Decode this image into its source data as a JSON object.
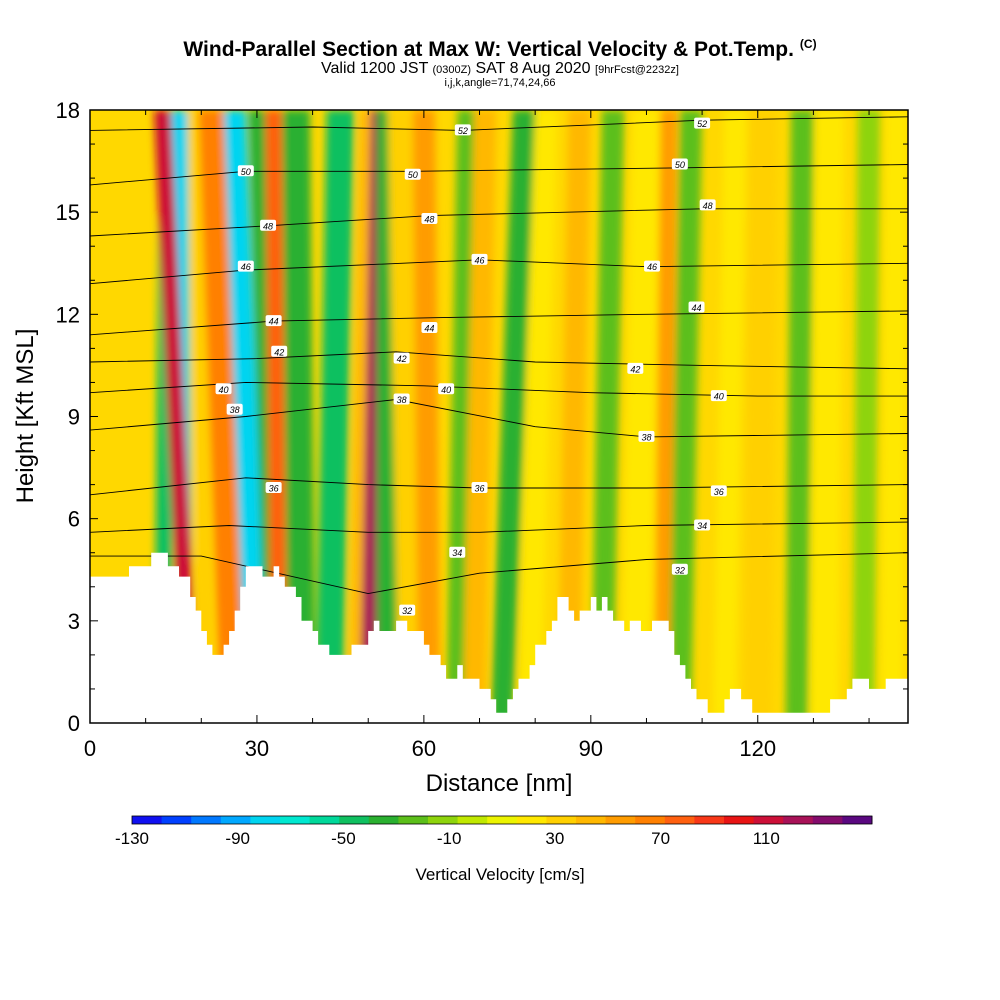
{
  "header": {
    "title": "Wind-Parallel Section at Max W: Vertical Velocity & Pot.Temp.",
    "title_mark": "(C)",
    "subtitle_main": "Valid 1200 JST",
    "subtitle_utc": "(0300Z)",
    "subtitle_date": "SAT 8 Aug 2020",
    "subtitle_fcst": "[9hrFcst@2232z]",
    "subtitle_2": "i,j,k,angle=71,74,24,66"
  },
  "chart_data": {
    "type": "heatmap",
    "xlabel": "Distance [nm]",
    "ylabel": "Height [Kft MSL]",
    "xlim": [
      0,
      147
    ],
    "ylim": [
      0,
      18
    ],
    "x_ticks": [
      "0",
      "30",
      "60",
      "90",
      "120"
    ],
    "y_ticks": [
      "0",
      "3",
      "6",
      "9",
      "12",
      "15",
      "18"
    ],
    "x_tick_values": [
      0,
      30,
      60,
      90,
      120
    ],
    "y_tick_values": [
      0,
      3,
      6,
      9,
      12,
      15,
      18
    ],
    "colorbar": {
      "label": "Vertical Velocity [cm/s]",
      "tick_labels": [
        "-130",
        "-90",
        "-50",
        "-10",
        "30",
        "70",
        "110"
      ],
      "tick_values": [
        -130,
        -90,
        -50,
        -10,
        30,
        70,
        110
      ],
      "range": [
        -130,
        150
      ],
      "colors": [
        "#1010f0",
        "#0040ff",
        "#0078ff",
        "#00a8ff",
        "#00d4f0",
        "#00e8d0",
        "#00d89a",
        "#10c060",
        "#2ab030",
        "#5cbf1a",
        "#8ed40c",
        "#c0e800",
        "#ecf400",
        "#ffe800",
        "#ffd000",
        "#ffb800",
        "#ff9c00",
        "#ff8000",
        "#ff6010",
        "#f83818",
        "#e81414",
        "#cc1038",
        "#a81258",
        "#840c6c",
        "#5a0880"
      ]
    },
    "terrain_kft": [
      [
        0,
        4.3
      ],
      [
        7,
        4.3
      ],
      [
        7,
        4.6
      ],
      [
        11,
        4.6
      ],
      [
        11,
        5.0
      ],
      [
        14,
        5.0
      ],
      [
        14,
        4.6
      ],
      [
        16,
        4.6
      ],
      [
        16,
        4.3
      ],
      [
        18,
        4.3
      ],
      [
        18,
        3.7
      ],
      [
        19,
        3.7
      ],
      [
        19,
        3.3
      ],
      [
        20,
        3.3
      ],
      [
        20,
        2.7
      ],
      [
        21,
        2.7
      ],
      [
        21,
        2.3
      ],
      [
        22,
        2.3
      ],
      [
        22,
        2.0
      ],
      [
        24,
        2.0
      ],
      [
        24,
        2.3
      ],
      [
        25,
        2.3
      ],
      [
        25,
        2.7
      ],
      [
        26,
        2.7
      ],
      [
        26,
        3.3
      ],
      [
        27,
        3.3
      ],
      [
        27,
        4.0
      ],
      [
        28,
        4.0
      ],
      [
        28,
        4.6
      ],
      [
        31,
        4.6
      ],
      [
        31,
        4.3
      ],
      [
        33,
        4.3
      ],
      [
        33,
        4.6
      ],
      [
        34,
        4.6
      ],
      [
        34,
        4.3
      ],
      [
        35,
        4.3
      ],
      [
        35,
        4.0
      ],
      [
        37,
        4.0
      ],
      [
        37,
        3.7
      ],
      [
        38,
        3.7
      ],
      [
        38,
        3.0
      ],
      [
        40,
        3.0
      ],
      [
        40,
        2.7
      ],
      [
        41,
        2.7
      ],
      [
        41,
        2.3
      ],
      [
        43,
        2.3
      ],
      [
        43,
        2.0
      ],
      [
        47,
        2.0
      ],
      [
        47,
        2.3
      ],
      [
        50,
        2.3
      ],
      [
        50,
        2.7
      ],
      [
        51,
        2.7
      ],
      [
        51,
        3.0
      ],
      [
        52,
        3.0
      ],
      [
        52,
        2.7
      ],
      [
        55,
        2.7
      ],
      [
        55,
        3.0
      ],
      [
        57,
        3.0
      ],
      [
        57,
        2.7
      ],
      [
        60,
        2.7
      ],
      [
        60,
        2.3
      ],
      [
        61,
        2.3
      ],
      [
        61,
        2.0
      ],
      [
        63,
        2.0
      ],
      [
        63,
        1.7
      ],
      [
        64,
        1.7
      ],
      [
        64,
        1.3
      ],
      [
        66,
        1.3
      ],
      [
        66,
        1.7
      ],
      [
        67,
        1.7
      ],
      [
        67,
        1.3
      ],
      [
        70,
        1.3
      ],
      [
        70,
        1.0
      ],
      [
        72,
        1.0
      ],
      [
        72,
        0.7
      ],
      [
        73,
        0.7
      ],
      [
        73,
        0.3
      ],
      [
        75,
        0.3
      ],
      [
        75,
        0.7
      ],
      [
        76,
        0.7
      ],
      [
        76,
        1.0
      ],
      [
        77,
        1.0
      ],
      [
        77,
        1.3
      ],
      [
        79,
        1.3
      ],
      [
        79,
        1.7
      ],
      [
        80,
        1.7
      ],
      [
        80,
        2.3
      ],
      [
        82,
        2.3
      ],
      [
        82,
        2.7
      ],
      [
        83,
        2.7
      ],
      [
        83,
        3.0
      ],
      [
        84,
        3.0
      ],
      [
        84,
        3.7
      ],
      [
        86,
        3.7
      ],
      [
        86,
        3.3
      ],
      [
        87,
        3.3
      ],
      [
        87,
        3.0
      ],
      [
        88,
        3.0
      ],
      [
        88,
        3.3
      ],
      [
        90,
        3.3
      ],
      [
        90,
        3.7
      ],
      [
        91,
        3.7
      ],
      [
        91,
        3.3
      ],
      [
        92,
        3.3
      ],
      [
        92,
        3.7
      ],
      [
        93,
        3.7
      ],
      [
        93,
        3.3
      ],
      [
        94,
        3.3
      ],
      [
        94,
        3.0
      ],
      [
        96,
        3.0
      ],
      [
        96,
        2.7
      ],
      [
        97,
        2.7
      ],
      [
        97,
        3.0
      ],
      [
        99,
        3.0
      ],
      [
        99,
        2.7
      ],
      [
        101,
        2.7
      ],
      [
        101,
        3.0
      ],
      [
        104,
        3.0
      ],
      [
        104,
        2.7
      ],
      [
        105,
        2.7
      ],
      [
        105,
        2.0
      ],
      [
        106,
        2.0
      ],
      [
        106,
        1.7
      ],
      [
        107,
        1.7
      ],
      [
        107,
        1.3
      ],
      [
        108,
        1.3
      ],
      [
        108,
        1.0
      ],
      [
        109,
        1.0
      ],
      [
        109,
        0.7
      ],
      [
        111,
        0.7
      ],
      [
        111,
        0.3
      ],
      [
        114,
        0.3
      ],
      [
        114,
        0.7
      ],
      [
        115,
        0.7
      ],
      [
        115,
        1.0
      ],
      [
        117,
        1.0
      ],
      [
        117,
        0.7
      ],
      [
        119,
        0.7
      ],
      [
        119,
        0.3
      ],
      [
        133,
        0.3
      ],
      [
        133,
        0.7
      ],
      [
        136,
        0.7
      ],
      [
        136,
        1.0
      ],
      [
        137,
        1.0
      ],
      [
        137,
        1.3
      ],
      [
        140,
        1.3
      ],
      [
        140,
        1.0
      ],
      [
        143,
        1.0
      ],
      [
        143,
        1.3
      ],
      [
        147,
        1.3
      ]
    ],
    "velocity_bands": [
      {
        "x_bottom": 13,
        "x_top": 14,
        "width": 3,
        "value": -50
      },
      {
        "x_bottom": 17,
        "x_top": 16,
        "width": 3,
        "value": -80
      },
      {
        "x_bottom": 18,
        "x_top": 13,
        "width": 3,
        "value": 110
      },
      {
        "x_bottom": 21,
        "x_top": 19,
        "width": 3,
        "value": 30
      },
      {
        "x_bottom": 26,
        "x_top": 22,
        "width": 5,
        "value": 70
      },
      {
        "x_bottom": 30,
        "x_top": 26,
        "width": 4,
        "value": -80
      },
      {
        "x_bottom": 33,
        "x_top": 30,
        "width": 3,
        "value": -40
      },
      {
        "x_bottom": 34,
        "x_top": 33,
        "width": 3,
        "value": 80
      },
      {
        "x_bottom": 38,
        "x_top": 37,
        "width": 5,
        "value": -40
      },
      {
        "x_bottom": 43,
        "x_top": 45,
        "width": 5,
        "value": -50
      },
      {
        "x_bottom": 48,
        "x_top": 50,
        "width": 3,
        "value": 40
      },
      {
        "x_bottom": 50,
        "x_top": 52,
        "width": 3,
        "value": 120
      },
      {
        "x_bottom": 54,
        "x_top": 54,
        "width": 5,
        "value": -40
      },
      {
        "x_bottom": 58,
        "x_top": 56,
        "width": 5,
        "value": 30
      },
      {
        "x_bottom": 61,
        "x_top": 60,
        "width": 4,
        "value": 60
      },
      {
        "x_bottom": 66,
        "x_top": 68,
        "width": 4,
        "value": -20
      },
      {
        "x_bottom": 69,
        "x_top": 71,
        "width": 4,
        "value": 40
      },
      {
        "x_bottom": 74,
        "x_top": 78,
        "width": 4,
        "value": -30
      },
      {
        "x_bottom": 79,
        "x_top": 82,
        "width": 4,
        "value": 20
      },
      {
        "x_bottom": 86,
        "x_top": 88,
        "width": 4,
        "value": 40
      },
      {
        "x_bottom": 92,
        "x_top": 94,
        "width": 4,
        "value": -20
      },
      {
        "x_bottom": 98,
        "x_top": 100,
        "width": 5,
        "value": 20
      },
      {
        "x_bottom": 103,
        "x_top": 104,
        "width": 3,
        "value": 60
      },
      {
        "x_bottom": 106,
        "x_top": 108,
        "width": 4,
        "value": -20
      },
      {
        "x_bottom": 114,
        "x_top": 116,
        "width": 4,
        "value": 20
      },
      {
        "x_bottom": 120,
        "x_top": 121,
        "width": 5,
        "value": 30
      },
      {
        "x_bottom": 127,
        "x_top": 128,
        "width": 4,
        "value": -20
      },
      {
        "x_bottom": 132,
        "x_top": 133,
        "width": 5,
        "value": 20
      },
      {
        "x_bottom": 139,
        "x_top": 140,
        "width": 4,
        "value": -10
      },
      {
        "x_bottom": 144,
        "x_top": 145,
        "width": 4,
        "value": 20
      }
    ],
    "theta_contours": [
      {
        "label": "32",
        "levels": [
          [
            0,
            4.9
          ],
          [
            20,
            4.9
          ],
          [
            50,
            3.8
          ],
          [
            70,
            4.4
          ],
          [
            100,
            4.8
          ],
          [
            147,
            5.0
          ]
        ],
        "label_at": [
          [
            57,
            3.3
          ],
          [
            106,
            4.5
          ]
        ]
      },
      {
        "label": "34",
        "levels": [
          [
            0,
            5.6
          ],
          [
            25,
            5.8
          ],
          [
            50,
            5.6
          ],
          [
            70,
            5.6
          ],
          [
            100,
            5.8
          ],
          [
            147,
            5.9
          ]
        ],
        "label_at": [
          [
            66,
            5.0
          ],
          [
            110,
            5.8
          ]
        ]
      },
      {
        "label": "36",
        "levels": [
          [
            0,
            6.7
          ],
          [
            28,
            7.2
          ],
          [
            50,
            7.0
          ],
          [
            70,
            6.9
          ],
          [
            100,
            6.9
          ],
          [
            147,
            7.0
          ]
        ],
        "label_at": [
          [
            33,
            6.9
          ],
          [
            70,
            6.9
          ],
          [
            113,
            6.8
          ]
        ]
      },
      {
        "label": "38",
        "levels": [
          [
            0,
            8.6
          ],
          [
            28,
            9.0
          ],
          [
            55,
            9.5
          ],
          [
            80,
            8.7
          ],
          [
            100,
            8.4
          ],
          [
            147,
            8.5
          ]
        ],
        "label_at": [
          [
            26,
            9.2
          ],
          [
            56,
            9.5
          ],
          [
            100,
            8.4
          ]
        ]
      },
      {
        "label": "40",
        "levels": [
          [
            0,
            9.7
          ],
          [
            28,
            10.0
          ],
          [
            60,
            9.9
          ],
          [
            90,
            9.7
          ],
          [
            120,
            9.6
          ],
          [
            147,
            9.6
          ]
        ],
        "label_at": [
          [
            24,
            9.8
          ],
          [
            64,
            9.8
          ],
          [
            113,
            9.6
          ]
        ]
      },
      {
        "label": "42",
        "levels": [
          [
            0,
            10.6
          ],
          [
            30,
            10.7
          ],
          [
            55,
            10.9
          ],
          [
            80,
            10.6
          ],
          [
            110,
            10.5
          ],
          [
            147,
            10.4
          ]
        ],
        "label_at": [
          [
            34,
            10.9
          ],
          [
            56,
            10.7
          ],
          [
            98,
            10.4
          ]
        ]
      },
      {
        "label": "44",
        "levels": [
          [
            0,
            11.4
          ],
          [
            33,
            11.8
          ],
          [
            62,
            11.9
          ],
          [
            100,
            12.0
          ],
          [
            147,
            12.1
          ]
        ],
        "label_at": [
          [
            33,
            11.8
          ],
          [
            61,
            11.6
          ],
          [
            109,
            12.2
          ]
        ]
      },
      {
        "label": "46",
        "levels": [
          [
            0,
            12.9
          ],
          [
            28,
            13.3
          ],
          [
            70,
            13.6
          ],
          [
            100,
            13.4
          ],
          [
            147,
            13.5
          ]
        ],
        "label_at": [
          [
            28,
            13.4
          ],
          [
            70,
            13.6
          ],
          [
            101,
            13.4
          ]
        ]
      },
      {
        "label": "48",
        "levels": [
          [
            0,
            14.3
          ],
          [
            32,
            14.6
          ],
          [
            61,
            14.9
          ],
          [
            110,
            15.1
          ],
          [
            147,
            15.1
          ]
        ],
        "label_at": [
          [
            32,
            14.6
          ],
          [
            61,
            14.8
          ],
          [
            111,
            15.2
          ]
        ]
      },
      {
        "label": "50",
        "levels": [
          [
            0,
            15.8
          ],
          [
            28,
            16.2
          ],
          [
            58,
            16.2
          ],
          [
            105,
            16.3
          ],
          [
            147,
            16.4
          ]
        ],
        "label_at": [
          [
            28,
            16.2
          ],
          [
            58,
            16.1
          ],
          [
            106,
            16.4
          ]
        ]
      },
      {
        "label": "52",
        "levels": [
          [
            0,
            17.4
          ],
          [
            40,
            17.5
          ],
          [
            67,
            17.4
          ],
          [
            110,
            17.7
          ],
          [
            147,
            17.8
          ]
        ],
        "label_at": [
          [
            67,
            17.4
          ],
          [
            110,
            17.6
          ]
        ]
      }
    ]
  }
}
